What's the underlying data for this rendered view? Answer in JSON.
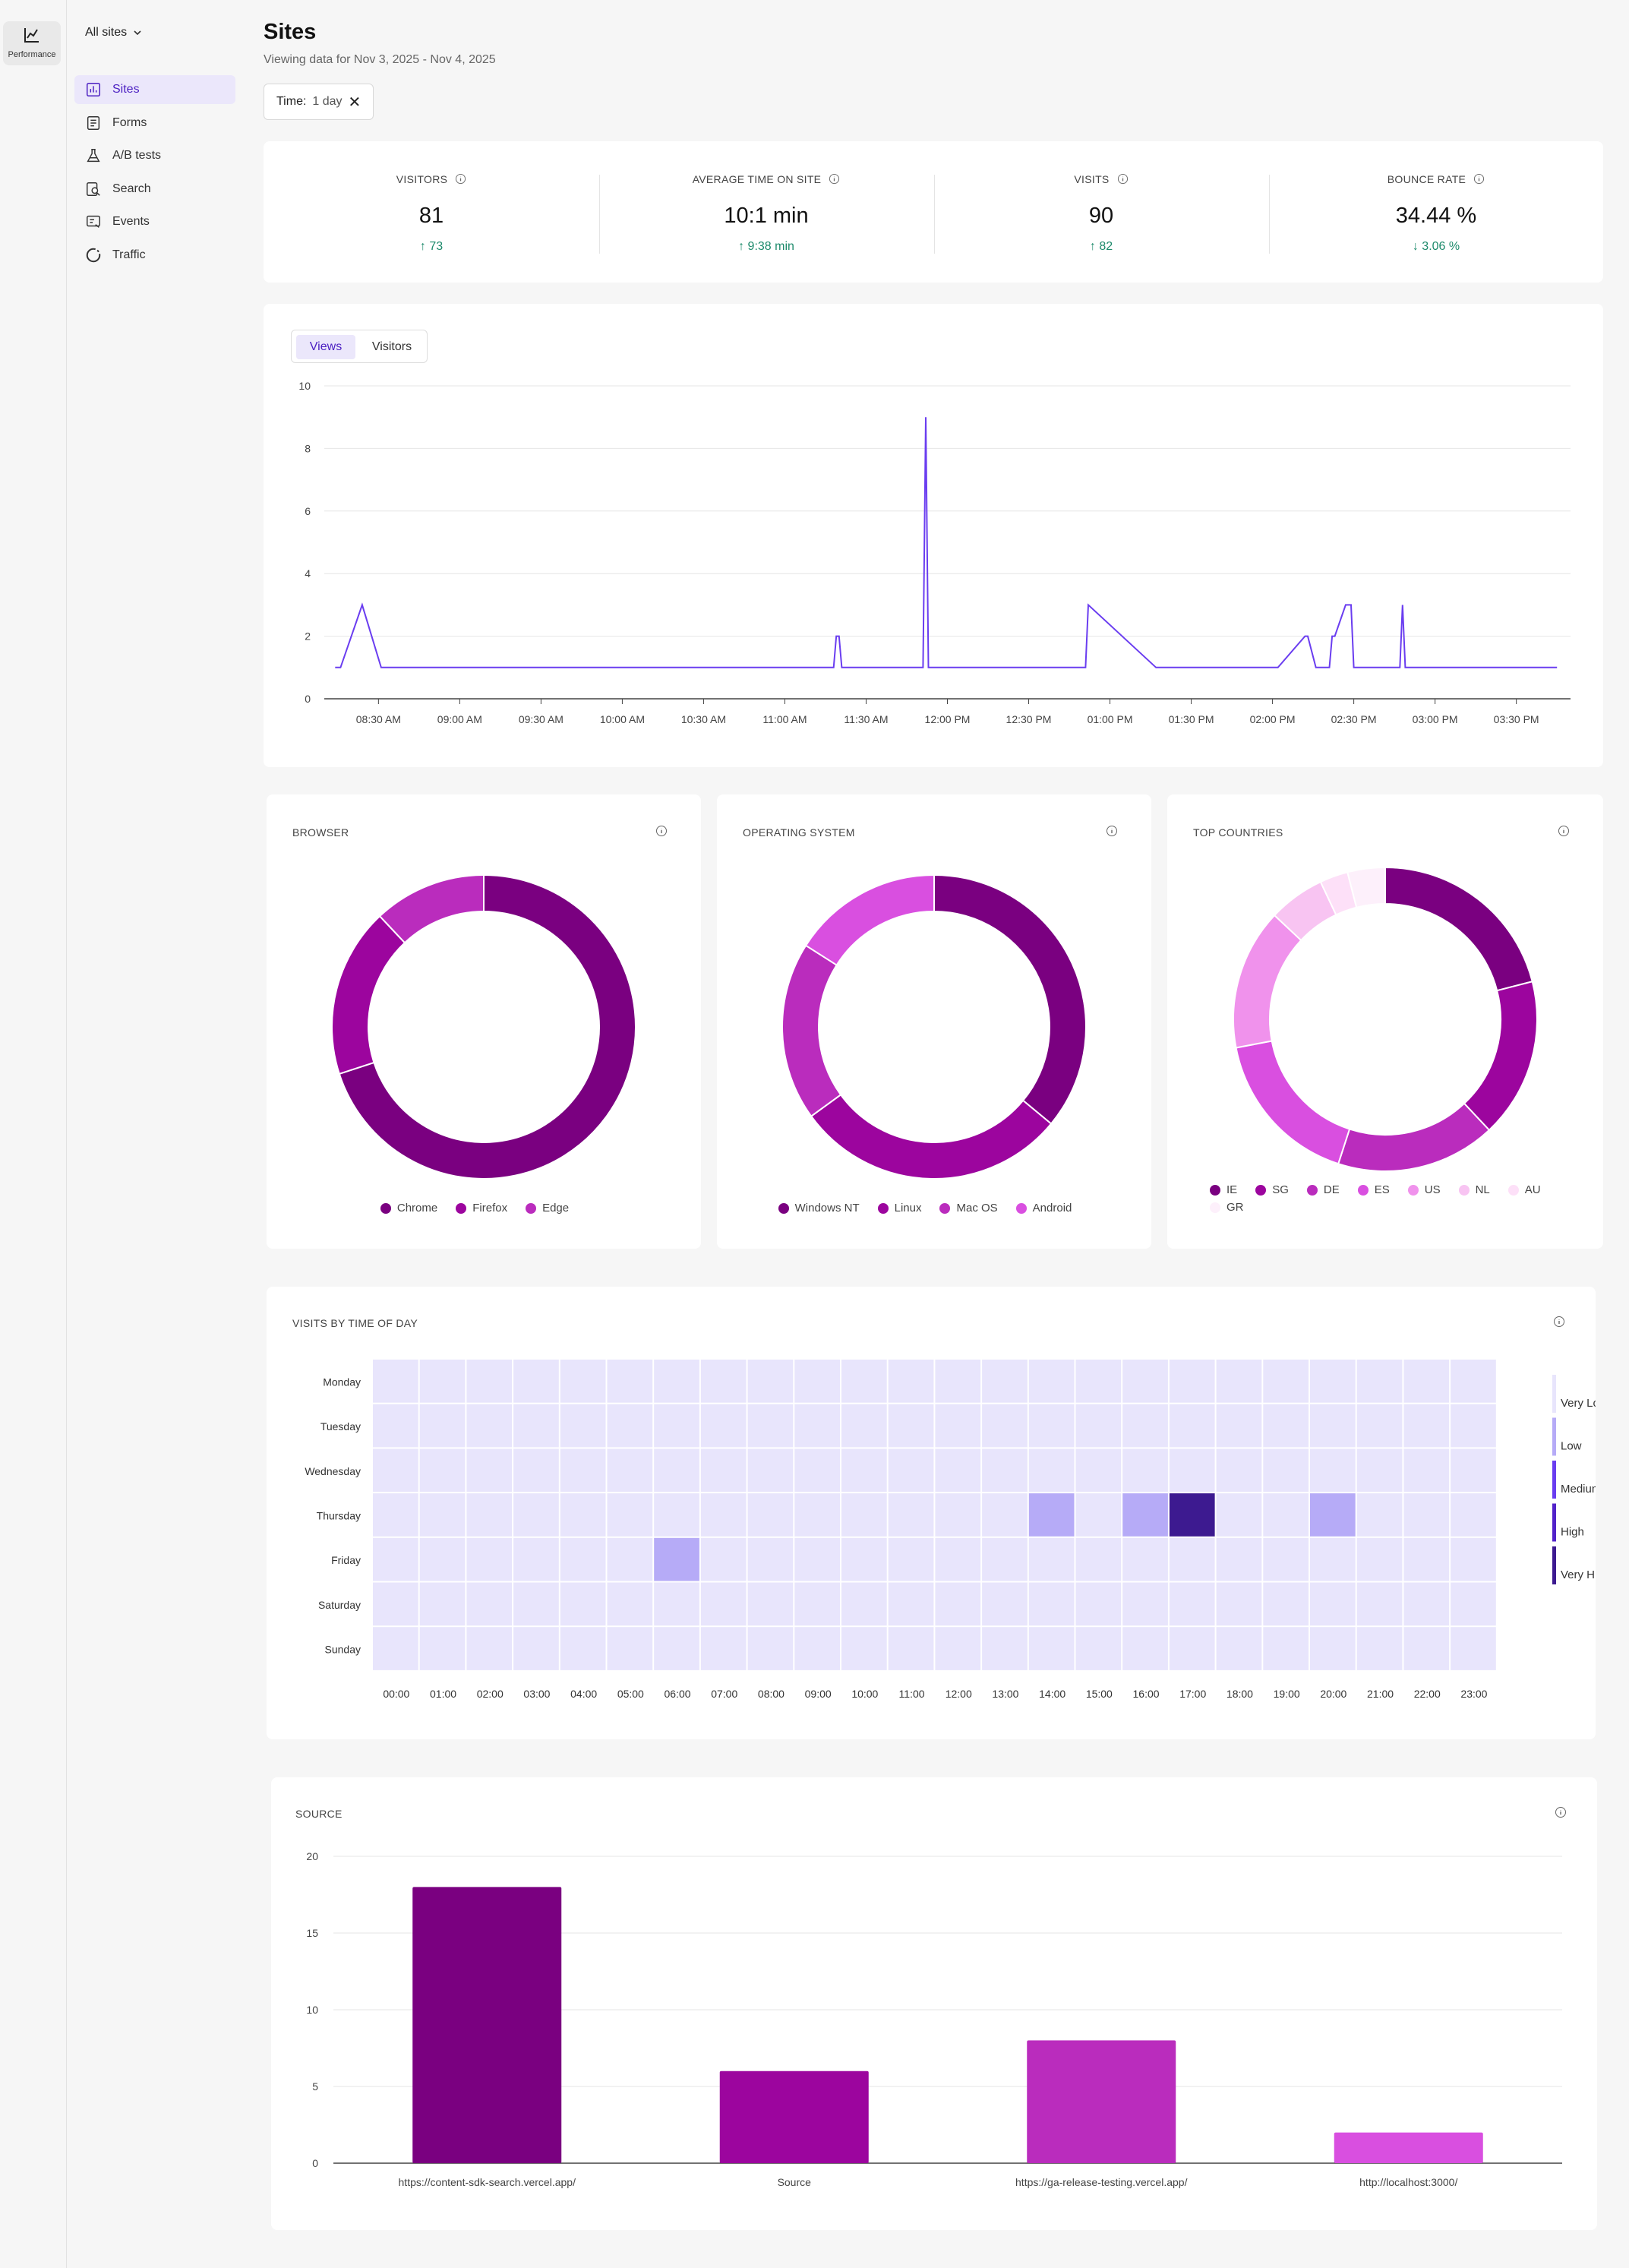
{
  "rail": {
    "label": "Performance"
  },
  "sidebar": {
    "site_select": "All sites",
    "items": [
      {
        "label": "Sites",
        "icon": "bar-chart-icon",
        "active": true
      },
      {
        "label": "Forms",
        "icon": "form-icon",
        "active": false
      },
      {
        "label": "A/B tests",
        "icon": "flask-icon",
        "active": false
      },
      {
        "label": "Search",
        "icon": "search-doc-icon",
        "active": false
      },
      {
        "label": "Events",
        "icon": "events-icon",
        "active": false
      },
      {
        "label": "Traffic",
        "icon": "traffic-icon",
        "active": false
      }
    ]
  },
  "header": {
    "title": "Sites",
    "subtitle": "Viewing data for Nov 3, 2025 - Nov 4, 2025",
    "filter_chip": {
      "key": "Time:",
      "value": "1 day"
    }
  },
  "kpis": [
    {
      "label": "VISITORS",
      "value": "81",
      "delta": "↑ 73"
    },
    {
      "label": "AVERAGE TIME ON SITE",
      "value": "10:1 min",
      "delta": "↑ 9:38 min"
    },
    {
      "label": "VISITS",
      "value": "90",
      "delta": "↑ 82"
    },
    {
      "label": "BOUNCE RATE",
      "value": "34.44 %",
      "delta": "↓ 3.06 %"
    }
  ],
  "colors": {
    "accent": "#6a3df0",
    "positive": "#1d8a6b",
    "palette": [
      "#7a0080",
      "#9c059e",
      "#ba2cbd",
      "#d94fe0",
      "#f092ec",
      "#f8c4f2",
      "#fde0f8",
      "#fdf0fb"
    ]
  },
  "views_chart": {
    "tabs": [
      "Views",
      "Visitors"
    ],
    "active_tab": "Views"
  },
  "chart_data": [
    {
      "id": "views",
      "type": "line",
      "x_unit": "minutes",
      "x_ticks": [
        "08:30 AM",
        "09:00 AM",
        "09:30 AM",
        "10:00 AM",
        "10:30 AM",
        "11:00 AM",
        "11:30 AM",
        "12:00 PM",
        "12:30 PM",
        "01:00 PM",
        "01:30 PM",
        "02:00 PM",
        "02:30 PM",
        "03:00 PM",
        "03:30 PM"
      ],
      "x_tick_minutes": [
        510,
        540,
        570,
        600,
        630,
        660,
        690,
        720,
        750,
        780,
        810,
        840,
        870,
        900,
        930
      ],
      "xlim": [
        490,
        950
      ],
      "ylim": [
        0,
        10
      ],
      "yticks": [
        0,
        2,
        4,
        6,
        8,
        10
      ],
      "grid": true,
      "series": [
        {
          "x": [
            494,
            496,
            504,
            511,
            676,
            678,
            679,
            680,
            681,
            682,
            684,
            710,
            711,
            712,
            713,
            714,
            715,
            770,
            771,
            772,
            797,
            842,
            852,
            853,
            856,
            860,
            861,
            862,
            863,
            867,
            869,
            870,
            873,
            875,
            876,
            877,
            886,
            887,
            888,
            889,
            945
          ],
          "y": [
            1,
            1,
            3,
            1,
            1,
            1,
            2,
            2,
            1,
            1,
            1,
            1,
            1,
            9,
            1,
            1,
            1,
            1,
            1,
            3,
            1,
            1,
            2,
            2,
            1,
            1,
            1,
            2,
            2,
            3,
            3,
            1,
            1,
            1,
            1,
            1,
            1,
            1,
            3,
            1,
            1
          ]
        }
      ]
    },
    {
      "id": "browser",
      "type": "pie",
      "title": "BROWSER",
      "labels": [
        "Chrome",
        "Firefox",
        "Edge"
      ],
      "values": [
        70,
        18,
        12
      ]
    },
    {
      "id": "os",
      "type": "pie",
      "title": "OPERATING SYSTEM",
      "labels": [
        "Windows NT",
        "Linux",
        "Mac OS",
        "Android"
      ],
      "values": [
        36,
        29,
        19,
        16
      ]
    },
    {
      "id": "countries",
      "type": "pie",
      "title": "TOP COUNTRIES",
      "labels": [
        "IE",
        "SG",
        "DE",
        "ES",
        "US",
        "NL",
        "AU",
        "GR"
      ],
      "values": [
        21,
        17,
        17,
        17,
        15,
        6,
        3,
        4
      ]
    },
    {
      "id": "heatmap",
      "type": "heatmap",
      "title": "VISITS BY TIME OF DAY",
      "rows": [
        "Monday",
        "Tuesday",
        "Wednesday",
        "Thursday",
        "Friday",
        "Saturday",
        "Sunday"
      ],
      "cols": [
        "00:00",
        "01:00",
        "02:00",
        "03:00",
        "04:00",
        "05:00",
        "06:00",
        "07:00",
        "08:00",
        "09:00",
        "10:00",
        "11:00",
        "12:00",
        "13:00",
        "14:00",
        "15:00",
        "16:00",
        "17:00",
        "18:00",
        "19:00",
        "20:00",
        "21:00",
        "22:00",
        "23:00"
      ],
      "scale_labels": [
        "Very Low",
        "Low",
        "Medium",
        "High",
        "Very High"
      ],
      "scale_colors": [
        "#e8e5fc",
        "#b6abf7",
        "#6a3df0",
        "#5222c9",
        "#3d1a90"
      ],
      "cells": [
        {
          "day": "Thursday",
          "hour": "14:00",
          "level": 1
        },
        {
          "day": "Thursday",
          "hour": "16:00",
          "level": 1
        },
        {
          "day": "Thursday",
          "hour": "17:00",
          "level": 4
        },
        {
          "day": "Thursday",
          "hour": "20:00",
          "level": 1
        },
        {
          "day": "Friday",
          "hour": "06:00",
          "level": 1
        }
      ]
    },
    {
      "id": "source",
      "type": "bar",
      "title": "SOURCE",
      "categories": [
        "https://content-sdk-search.vercel.app/",
        "Source",
        "https://ga-release-testing.vercel.app/",
        "http://localhost:3000/"
      ],
      "values": [
        18,
        6,
        8,
        2
      ],
      "ylim": [
        0,
        20
      ],
      "yticks": [
        0,
        5,
        10,
        15,
        20
      ],
      "grid": true
    }
  ]
}
